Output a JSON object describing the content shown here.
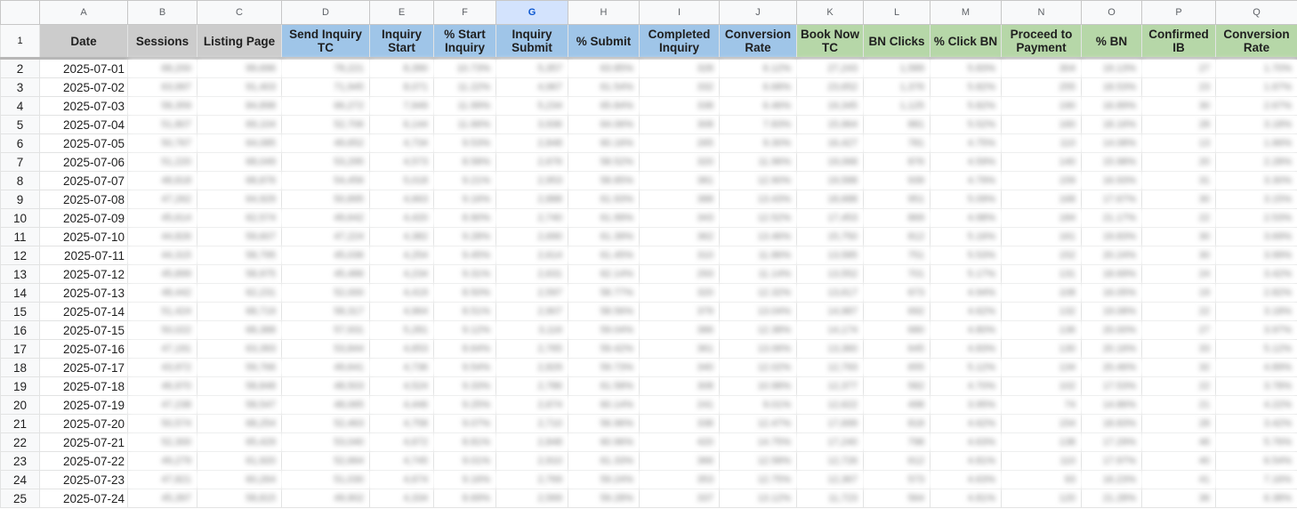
{
  "columns": [
    "A",
    "B",
    "C",
    "D",
    "E",
    "F",
    "G",
    "H",
    "I",
    "J",
    "K",
    "L",
    "M",
    "N",
    "O",
    "P",
    "Q"
  ],
  "selected_column": "G",
  "colors": {
    "header_gray": "#cccccc",
    "header_blue": "#9fc5e8",
    "header_green": "#b6d7a8",
    "selected_column_highlight": "#d3e3fd"
  },
  "header_row_number": "1",
  "headers": [
    "Date",
    "Sessions",
    "Listing Page",
    "Send Inquiry TC",
    "Inquiry Start",
    "% Start Inquiry",
    "Inquiry Submit",
    "% Submit",
    "Completed Inquiry",
    "Conversion Rate",
    "Book Now TC",
    "BN Clicks",
    "% Click BN",
    "Proceed to Payment",
    "% BN",
    "Confirmed IB",
    "Conversion Rate"
  ],
  "rows": [
    {
      "row": "2",
      "date": "2025-07-01",
      "values": [
        "68,200",
        "99,696",
        "78,221",
        "8,390",
        "10.73%",
        "5,357",
        "63.85%",
        "328",
        "6.12%",
        "27,243",
        "1,589",
        "5.83%",
        "304",
        "19.13%",
        "27",
        "1.70%"
      ]
    },
    {
      "row": "3",
      "date": "2025-07-02",
      "values": [
        "63,997",
        "91,403",
        "71,945",
        "8,071",
        "11.22%",
        "4,967",
        "61.54%",
        "332",
        "6.68%",
        "23,652",
        "1,376",
        "5.82%",
        "255",
        "18.53%",
        "23",
        "1.67%"
      ]
    },
    {
      "row": "4",
      "date": "2025-07-03",
      "values": [
        "58,359",
        "84,898",
        "66,272",
        "7,949",
        "11.99%",
        "5,234",
        "65.84%",
        "338",
        "6.46%",
        "19,345",
        "1,125",
        "5.82%",
        "190",
        "16.89%",
        "30",
        "2.67%"
      ]
    },
    {
      "row": "5",
      "date": "2025-07-04",
      "values": [
        "51,807",
        "69,104",
        "52,706",
        "6,144",
        "11.66%",
        "3,936",
        "64.06%",
        "308",
        "7.83%",
        "15,964",
        "881",
        "5.52%",
        "160",
        "18.16%",
        "28",
        "3.18%"
      ]
    },
    {
      "row": "6",
      "date": "2025-07-05",
      "values": [
        "50,767",
        "64,085",
        "49,652",
        "4,734",
        "9.53%",
        "2,848",
        "60.16%",
        "265",
        "9.30%",
        "16,427",
        "781",
        "4.75%",
        "110",
        "14.08%",
        "13",
        "1.66%"
      ]
    },
    {
      "row": "7",
      "date": "2025-07-06",
      "values": [
        "51,220",
        "68,049",
        "53,295",
        "4,573",
        "8.58%",
        "2,676",
        "58.52%",
        "320",
        "11.96%",
        "19,068",
        "876",
        "4.59%",
        "140",
        "15.98%",
        "20",
        "2.28%"
      ]
    },
    {
      "row": "8",
      "date": "2025-07-07",
      "values": [
        "48,818",
        "68,876",
        "54,456",
        "5,018",
        "9.21%",
        "2,953",
        "58.85%",
        "381",
        "12.90%",
        "19,588",
        "939",
        "4.79%",
        "159",
        "16.93%",
        "31",
        "3.30%"
      ]
    },
    {
      "row": "9",
      "date": "2025-07-08",
      "values": [
        "47,262",
        "64,929",
        "50,895",
        "4,663",
        "9.16%",
        "2,888",
        "61.93%",
        "388",
        "13.43%",
        "18,688",
        "951",
        "5.09%",
        "168",
        "17.67%",
        "30",
        "3.15%"
      ]
    },
    {
      "row": "10",
      "date": "2025-07-09",
      "values": [
        "45,614",
        "62,574",
        "49,642",
        "4,420",
        "8.90%",
        "2,740",
        "61.99%",
        "343",
        "12.52%",
        "17,453",
        "869",
        "4.98%",
        "184",
        "21.17%",
        "22",
        "2.53%"
      ]
    },
    {
      "row": "11",
      "date": "2025-07-10",
      "values": [
        "44,826",
        "59,607",
        "47,224",
        "4,382",
        "9.28%",
        "2,690",
        "61.39%",
        "362",
        "13.46%",
        "15,750",
        "812",
        "5.16%",
        "161",
        "19.83%",
        "30",
        "3.69%"
      ]
    },
    {
      "row": "12",
      "date": "2025-07-11",
      "values": [
        "44,315",
        "58,795",
        "45,036",
        "4,254",
        "9.45%",
        "2,614",
        "61.45%",
        "310",
        "11.86%",
        "13,585",
        "751",
        "5.53%",
        "152",
        "20.24%",
        "30",
        "3.99%"
      ]
    },
    {
      "row": "13",
      "date": "2025-07-12",
      "values": [
        "45,899",
        "58,975",
        "45,486",
        "4,234",
        "9.31%",
        "2,631",
        "62.14%",
        "293",
        "11.14%",
        "13,552",
        "701",
        "5.17%",
        "131",
        "18.69%",
        "24",
        "3.42%"
      ]
    },
    {
      "row": "14",
      "date": "2025-07-13",
      "values": [
        "48,442",
        "62,231",
        "52,000",
        "4,419",
        "8.50%",
        "2,597",
        "58.77%",
        "320",
        "12.32%",
        "13,617",
        "673",
        "4.94%",
        "108",
        "16.05%",
        "19",
        "2.82%"
      ]
    },
    {
      "row": "15",
      "date": "2025-07-14",
      "values": [
        "51,424",
        "68,719",
        "58,317",
        "4,964",
        "8.51%",
        "2,907",
        "58.56%",
        "379",
        "13.04%",
        "14,987",
        "692",
        "4.62%",
        "132",
        "19.08%",
        "22",
        "3.18%"
      ]
    },
    {
      "row": "16",
      "date": "2025-07-15",
      "values": [
        "50,022",
        "68,388",
        "57,931",
        "5,281",
        "9.12%",
        "3,116",
        "59.04%",
        "386",
        "12.38%",
        "14,174",
        "680",
        "4.80%",
        "136",
        "20.00%",
        "27",
        "3.97%"
      ]
    },
    {
      "row": "17",
      "date": "2025-07-16",
      "values": [
        "47,191",
        "63,393",
        "53,844",
        "4,653",
        "8.64%",
        "2,765",
        "59.42%",
        "361",
        "13.06%",
        "13,360",
        "645",
        "4.83%",
        "130",
        "20.16%",
        "33",
        "5.12%"
      ]
    },
    {
      "row": "18",
      "date": "2025-07-17",
      "values": [
        "43,972",
        "59,766",
        "49,641",
        "4,736",
        "9.54%",
        "2,829",
        "59.73%",
        "340",
        "12.02%",
        "12,793",
        "655",
        "5.12%",
        "134",
        "20.46%",
        "32",
        "4.89%"
      ]
    },
    {
      "row": "19",
      "date": "2025-07-18",
      "values": [
        "46,970",
        "58,848",
        "48,503",
        "4,524",
        "9.33%",
        "2,786",
        "61.58%",
        "308",
        "10.98%",
        "12,377",
        "582",
        "4.70%",
        "102",
        "17.53%",
        "22",
        "3.78%"
      ]
    },
    {
      "row": "20",
      "date": "2025-07-19",
      "values": [
        "47,238",
        "58,547",
        "48,065",
        "4,446",
        "9.25%",
        "2,674",
        "60.14%",
        "241",
        "9.01%",
        "12,622",
        "498",
        "3.95%",
        "74",
        "14.86%",
        "21",
        "4.22%"
      ]
    },
    {
      "row": "21",
      "date": "2025-07-20",
      "values": [
        "50,574",
        "68,254",
        "52,463",
        "4,758",
        "9.07%",
        "2,710",
        "56.96%",
        "338",
        "12.47%",
        "17,699",
        "818",
        "4.62%",
        "154",
        "18.83%",
        "28",
        "3.42%"
      ]
    },
    {
      "row": "22",
      "date": "2025-07-21",
      "values": [
        "52,300",
        "65,429",
        "53,040",
        "4,672",
        "8.81%",
        "2,848",
        "60.96%",
        "420",
        "14.75%",
        "17,240",
        "798",
        "4.63%",
        "138",
        "17.29%",
        "46",
        "5.76%"
      ]
    },
    {
      "row": "23",
      "date": "2025-07-22",
      "values": [
        "49,279",
        "61,920",
        "52,664",
        "4,745",
        "9.01%",
        "2,910",
        "61.33%",
        "366",
        "12.58%",
        "12,726",
        "612",
        "4.81%",
        "110",
        "17.97%",
        "40",
        "6.54%"
      ]
    },
    {
      "row": "24",
      "date": "2025-07-23",
      "values": [
        "47,821",
        "60,264",
        "51,030",
        "4,674",
        "9.16%",
        "2,769",
        "59.24%",
        "353",
        "12.75%",
        "12,367",
        "573",
        "4.63%",
        "93",
        "16.23%",
        "41",
        "7.16%"
      ]
    },
    {
      "row": "25",
      "date": "2025-07-24",
      "values": [
        "45,397",
        "58,815",
        "49,902",
        "4,334",
        "8.69%",
        "2,569",
        "59.28%",
        "337",
        "13.12%",
        "11,723",
        "564",
        "4.81%",
        "120",
        "21.28%",
        "36",
        "6.38%"
      ]
    }
  ]
}
